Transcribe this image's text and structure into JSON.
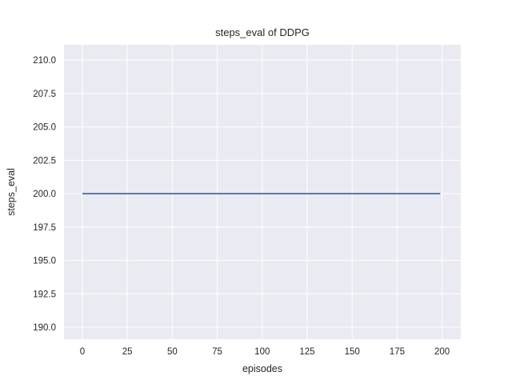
{
  "figure": {
    "title": "steps_eval of DDPG",
    "xlabel": "episodes",
    "ylabel": "steps_eval"
  },
  "chart_data": {
    "type": "line",
    "title": "steps_eval of DDPG",
    "xlabel": "episodes",
    "ylabel": "steps_eval",
    "series": [
      {
        "name": "steps_eval",
        "x": [
          0,
          199
        ],
        "y": [
          200,
          200
        ],
        "color": "#4c72b0",
        "linewidth": 1.8
      }
    ],
    "xlim": [
      -10.2,
      210.4
    ],
    "ylim": [
      189.1,
      211.15
    ],
    "xticks": [
      0,
      25,
      50,
      75,
      100,
      125,
      150,
      175,
      200
    ],
    "xtick_labels": [
      "0",
      "25",
      "50",
      "75",
      "100",
      "125",
      "150",
      "175",
      "200"
    ],
    "yticks": [
      190.0,
      192.5,
      195.0,
      197.5,
      200.0,
      202.5,
      205.0,
      207.5,
      210.0
    ],
    "ytick_labels": [
      "190.0",
      "192.5",
      "195.0",
      "197.5",
      "200.0",
      "202.5",
      "205.0",
      "207.5",
      "210.0"
    ],
    "grid": true,
    "legend": false,
    "plot_bg_color": "#eaeaf2",
    "grid_color": "#ffffff",
    "text_color": "#262626"
  }
}
